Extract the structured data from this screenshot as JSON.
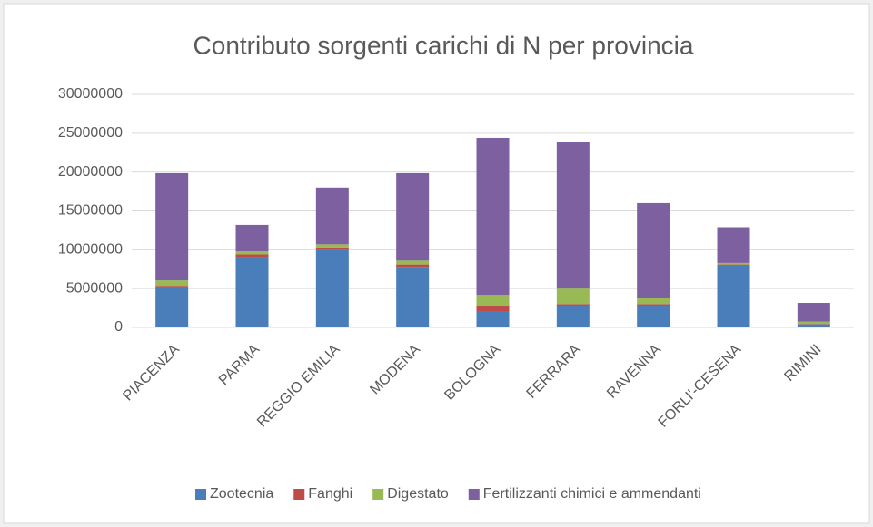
{
  "chart_data": {
    "type": "bar",
    "stacked": true,
    "title": "Contributo sorgenti carichi di N per provincia",
    "categories": [
      "PIACENZA",
      "PARMA",
      "REGGIO EMILIA",
      "MODENA",
      "BOLOGNA",
      "FERRARA",
      "RAVENNA",
      "FORLI'-CESENA",
      "RIMINI"
    ],
    "series": [
      {
        "name": "Zootecnia",
        "color": "#4a7ebb",
        "values": [
          5250000,
          9100000,
          10000000,
          7800000,
          2100000,
          2800000,
          2800000,
          8000000,
          400000
        ]
      },
      {
        "name": "Fanghi",
        "color": "#be4b48",
        "values": [
          100000,
          300000,
          300000,
          300000,
          700000,
          200000,
          200000,
          100000,
          50000
        ]
      },
      {
        "name": "Digestato",
        "color": "#98b954",
        "values": [
          700000,
          400000,
          400000,
          500000,
          1400000,
          2000000,
          850000,
          200000,
          300000
        ]
      },
      {
        "name": "Fertilizzanti chimici e ammendanti",
        "color": "#7d60a0",
        "values": [
          13800000,
          3400000,
          7300000,
          11250000,
          20200000,
          18900000,
          12150000,
          4600000,
          2400000
        ]
      }
    ],
    "ylim": [
      0,
      30000000
    ],
    "yticks": [
      0,
      5000000,
      10000000,
      15000000,
      20000000,
      25000000,
      30000000
    ],
    "grid": true,
    "legend": "bottom"
  }
}
